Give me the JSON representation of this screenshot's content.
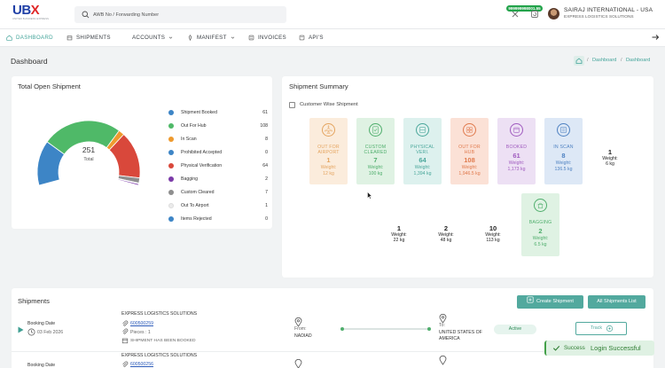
{
  "brand": {
    "logo_text": "UBX",
    "logo_sub": "UNITED BUSINESS EXPRESS"
  },
  "search": {
    "placeholder": "AWB No / Forwarding Number"
  },
  "header": {
    "wallet_balance": "999999998001.55",
    "account_name": "SAIRAJ INTERNATIONAL - USA",
    "account_company": "EXPRESS LOGISTICS SOLUTIONS"
  },
  "nav": {
    "dashboard": "DASHBOARD",
    "shipments": "SHIPMENTS",
    "accounts": "ACCOUNTS",
    "manifest": "MANIFEST",
    "invoices": "INVOICES",
    "apis": "API'S"
  },
  "page": {
    "title": "Dashboard",
    "breadcrumb": [
      "Dashboard",
      "Dashboard"
    ],
    "breadcrumb_sep": "/"
  },
  "open_shipment": {
    "title": "Total Open Shipment",
    "total": "251",
    "total_label": "Total",
    "legend": [
      {
        "label": "Shipment Booked",
        "value": "61",
        "color": "#3d85c6"
      },
      {
        "label": "Out For Hub",
        "value": "108",
        "color": "#4fb968"
      },
      {
        "label": "In Scan",
        "value": "8",
        "color": "#ee9a2e"
      },
      {
        "label": "Prohibited Accepted",
        "value": "0",
        "color": "#3d85c6"
      },
      {
        "label": "Physical Verification",
        "value": "64",
        "color": "#d9483b"
      },
      {
        "label": "Bagging",
        "value": "2",
        "color": "#7b3aa8"
      },
      {
        "label": "Custom Cleared",
        "value": "7",
        "color": "#8e8e8e"
      },
      {
        "label": "Out To Airport",
        "value": "1",
        "color": "#ebebeb"
      },
      {
        "label": "Items Rejected",
        "value": "0",
        "color": "#3d85c6"
      }
    ]
  },
  "summary": {
    "title": "Shipment Summary",
    "customer_wise": "Customer Wise Shipment",
    "tiles": [
      {
        "label": [
          "OUT FOR",
          "AIRPORT"
        ],
        "count": "1",
        "weight_label": "Weight:",
        "weight": "12 kg",
        "bg": "#fbecdc",
        "fg": "#e4a45f",
        "icon": "airplane-icon"
      },
      {
        "label": [
          "CUSTOM",
          "CLEARED"
        ],
        "count": "7",
        "weight_label": "Weight:",
        "weight": "100 kg",
        "bg": "#dff2e3",
        "fg": "#4fae6c",
        "icon": "clipboard-check-icon"
      },
      {
        "label": [
          "PHYSICAL",
          "VERI."
        ],
        "count": "64",
        "weight_label": "Weight:",
        "weight": "1,394 kg",
        "bg": "#ddf1ee",
        "fg": "#4aa79b",
        "icon": "scan-box-icon"
      },
      {
        "label": [
          "OUT FOR",
          "HUB"
        ],
        "count": "108",
        "weight_label": "Weight:",
        "weight": "1,946.5 kg",
        "bg": "#fbe1d6",
        "fg": "#e07a4d",
        "icon": "hub-icon"
      },
      {
        "label": [
          "BOOKED",
          ""
        ],
        "count": "61",
        "weight_label": "Weight:",
        "weight": "1,173 kg",
        "bg": "#ede0f4",
        "fg": "#a05bbf",
        "icon": "calendar-icon"
      },
      {
        "label": [
          "IN SCAN",
          ""
        ],
        "count": "8",
        "weight_label": "Weight:",
        "weight": "136.5 kg",
        "bg": "#dde8f6",
        "fg": "#4f82c2",
        "icon": "scanner-icon"
      },
      {
        "label": [
          "BAGGING",
          ""
        ],
        "count": "2",
        "weight_label": "Weight:",
        "weight": "6.5 kg",
        "bg": "#dff2e3",
        "fg": "#4fae6c",
        "icon": "bag-icon"
      }
    ],
    "plain_stats": [
      {
        "count": "1",
        "weight_label": "Weight:",
        "weight": "6 kg"
      },
      {
        "count": "1",
        "weight_label": "Weight:",
        "weight": "22 kg"
      },
      {
        "count": "2",
        "weight_label": "Weight:",
        "weight": "48 kg"
      },
      {
        "count": "10",
        "weight_label": "Weight:",
        "weight": "113 kg"
      }
    ]
  },
  "shipments": {
    "title": "Shipments",
    "create_btn": "Create Shipment",
    "all_btn": "All Shipments List",
    "rows": [
      {
        "booking_label": "Booking Date",
        "booking_date": "03 Feb 2026",
        "company": "EXPRESS LOGISTICS SOLUTIONS",
        "awb": "600500259",
        "pieces": "Pieces : 1",
        "status_note": "SHIPMENT HAS BEEN BOOKED",
        "from_label": "From:",
        "from": "NADIAD",
        "to_label": "To:",
        "to": [
          "UNITED STATES OF",
          "AMERICA"
        ],
        "status": "Active",
        "track": "Track"
      },
      {
        "booking_label": "Booking Date",
        "company": "EXPRESS LOGISTICS SOLUTIONS",
        "awb": "600500256"
      }
    ]
  },
  "toast": {
    "label": "Success",
    "message": "Login Successful"
  },
  "colors": {
    "accent": "#52a99e",
    "brand_blue": "#1f3fa6",
    "brand_red": "#e02828"
  }
}
